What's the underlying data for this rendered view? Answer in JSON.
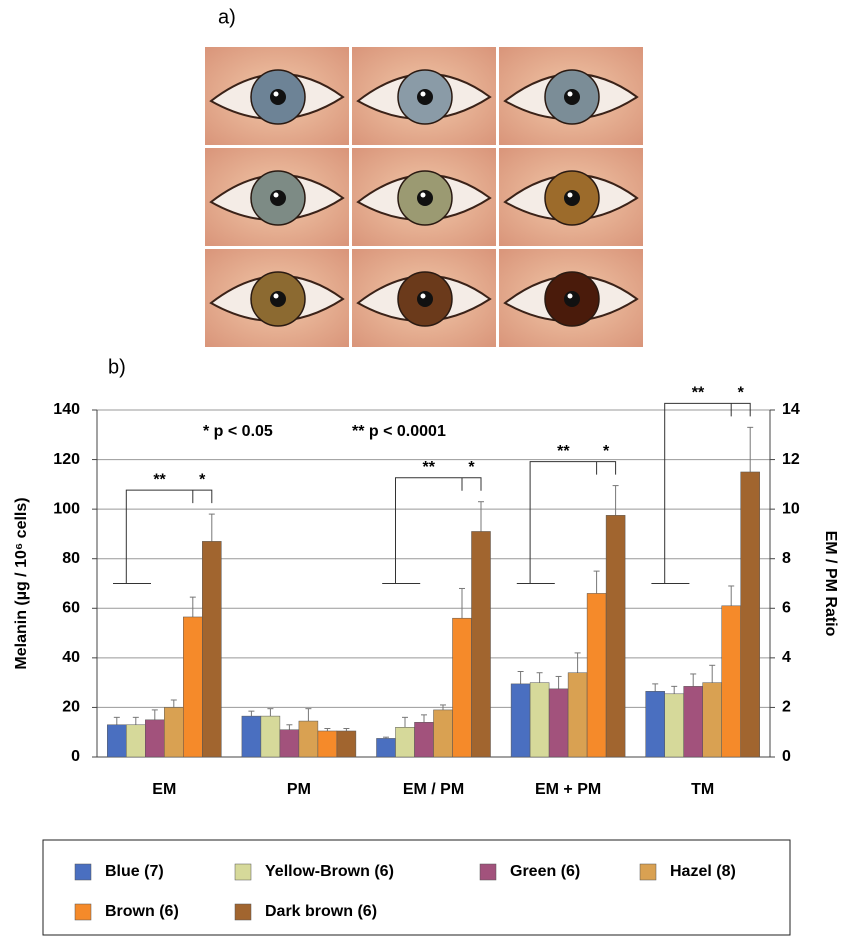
{
  "chart_data": {
    "type": "bar",
    "panel_labels": [
      "a)",
      "b)"
    ],
    "y_label": "Melanin (µg / 10⁶ cells)",
    "y2_label": "EM / PM Ratio",
    "annotations": [
      "* p < 0.05",
      "** p < 0.0001"
    ],
    "categories": [
      "EM",
      "PM",
      "EM / PM",
      "EM + PM",
      "TM"
    ],
    "significance": [
      [
        "**",
        "*"
      ],
      null,
      [
        "**",
        "*"
      ],
      [
        "**",
        "*"
      ],
      [
        "**",
        "*"
      ]
    ],
    "series": [
      {
        "name": "Blue (7)",
        "color": "#4a6fc0",
        "values": [
          13,
          16.5,
          7.5,
          29.5,
          26.5
        ],
        "errors": [
          3,
          2,
          0.5,
          5,
          3
        ]
      },
      {
        "name": "Yellow-Brown (6)",
        "color": "#d6d99a",
        "values": [
          13,
          16.5,
          12,
          30,
          25.5
        ],
        "errors": [
          3,
          3,
          4,
          4,
          3
        ]
      },
      {
        "name": "Green (6)",
        "color": "#a2527c",
        "values": [
          15,
          11,
          14,
          27.5,
          28.5
        ],
        "errors": [
          4,
          2,
          3,
          5,
          5
        ]
      },
      {
        "name": "Hazel (8)",
        "color": "#d9a152",
        "values": [
          20,
          14.5,
          19,
          34,
          30
        ],
        "errors": [
          3,
          5,
          2,
          8,
          7
        ]
      },
      {
        "name": "Brown (6)",
        "color": "#f58a2a",
        "values": [
          56.5,
          10.5,
          56,
          66,
          61
        ],
        "errors": [
          8,
          1,
          12,
          9,
          8
        ]
      },
      {
        "name": "Dark brown (6)",
        "color": "#a1652f",
        "values": [
          87,
          10.5,
          91,
          97.5,
          115
        ],
        "errors": [
          11,
          1,
          12,
          12,
          18
        ]
      }
    ],
    "ylim": [
      0,
      140
    ],
    "yticks": [
      0,
      20,
      40,
      60,
      80,
      100,
      120,
      140
    ],
    "y2lim": [
      0,
      14
    ],
    "y2ticks": [
      0,
      2,
      4,
      6,
      8,
      10,
      12,
      14
    ],
    "grid": true
  }
}
